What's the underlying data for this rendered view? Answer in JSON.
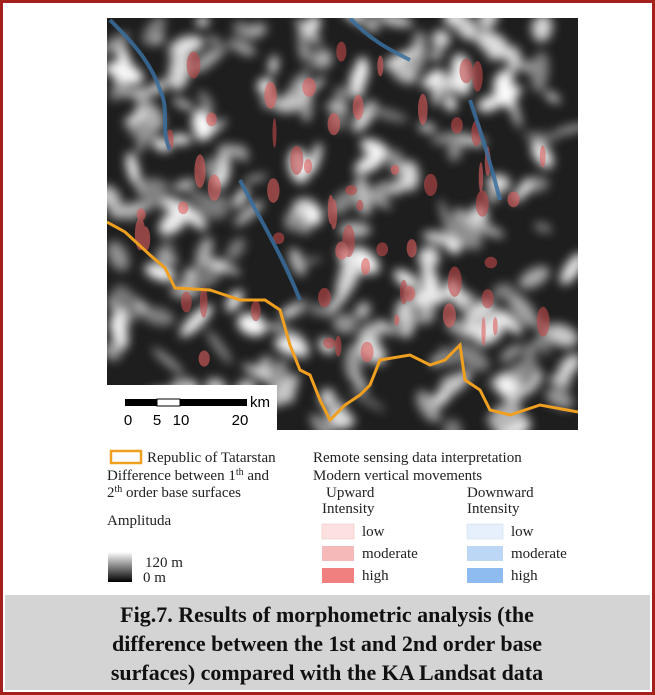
{
  "map": {
    "scale_bar": {
      "unit": "km",
      "ticks": [
        "0",
        "5",
        "10",
        "20"
      ]
    }
  },
  "legend": {
    "boundary": "Republic of Tatarstan",
    "difference": {
      "line1": [
        "Difference between 1",
        "th",
        " and"
      ],
      "line2": [
        "2",
        "th",
        " order base surfaces"
      ]
    },
    "amplitude": {
      "title": "Amplituda",
      "max": "120 m",
      "min": "0 m"
    },
    "remote_sensing": {
      "title": "Remote sensing data interpretation",
      "subtitle": "Modern vertical movements",
      "upward": {
        "title": "Upward",
        "intensity": "Intensity",
        "levels": [
          "low",
          "moderate",
          "high"
        ]
      },
      "downward": {
        "title": "Downward",
        "intensity": "Intensity",
        "levels": [
          "low",
          "moderate",
          "high"
        ]
      }
    }
  },
  "caption": {
    "lines": [
      "Fig.7. Results of morphometric analysis (the",
      "difference between the 1st and 2nd order base",
      "surfaces) compared with the KA Landsat data"
    ]
  }
}
